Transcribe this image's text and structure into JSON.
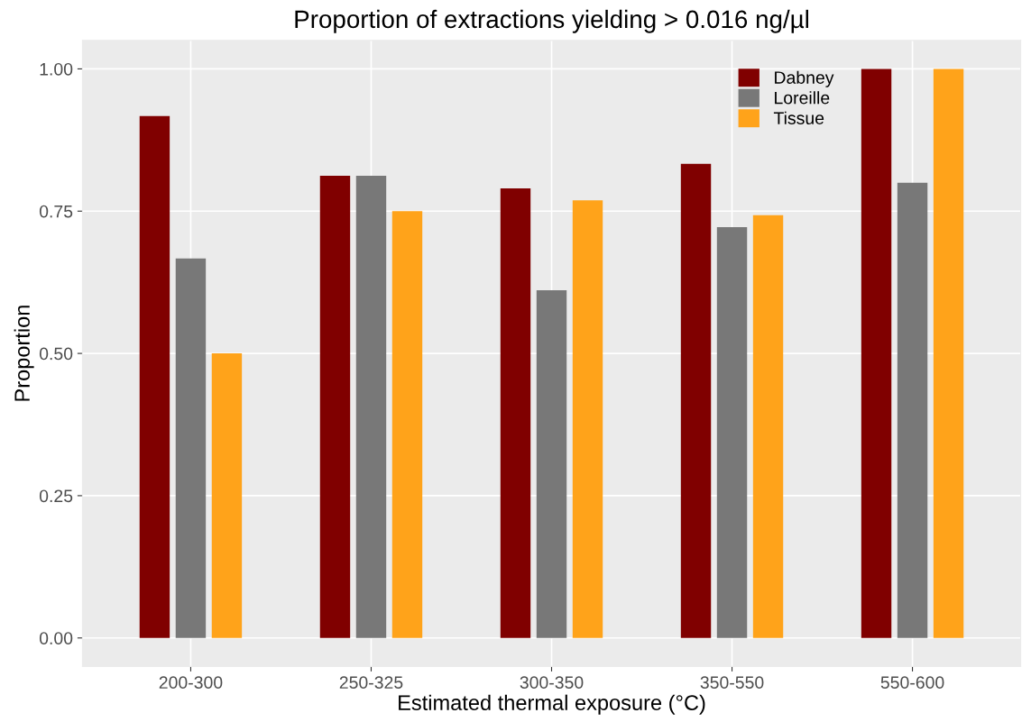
{
  "chart_data": {
    "type": "bar",
    "title": "Proportion of extractions yielding > 0.016 ng/µl",
    "xlabel": "Estimated thermal exposure (°C)",
    "ylabel": "Proportion",
    "categories": [
      "200-300",
      "250-325",
      "300-350",
      "350-550",
      "550-600"
    ],
    "series": [
      {
        "name": "Dabney",
        "color": "#800000",
        "values": [
          0.917,
          0.812,
          0.79,
          0.833,
          1.0
        ]
      },
      {
        "name": "Loreille",
        "color": "#787878",
        "values": [
          0.667,
          0.812,
          0.611,
          0.722,
          0.8
        ]
      },
      {
        "name": "Tissue",
        "color": "#ffa31a",
        "values": [
          0.5,
          0.75,
          0.769,
          0.743,
          1.0
        ]
      }
    ],
    "ylim": [
      -0.05,
      1.05
    ],
    "yticks": [
      {
        "value": 0,
        "label": "0.00"
      },
      {
        "value": 0.25,
        "label": "0.25"
      },
      {
        "value": 0.5,
        "label": "0.50"
      },
      {
        "value": 0.75,
        "label": "0.75"
      },
      {
        "value": 1,
        "label": "1.00"
      }
    ],
    "grid": true,
    "legend": "top right"
  }
}
